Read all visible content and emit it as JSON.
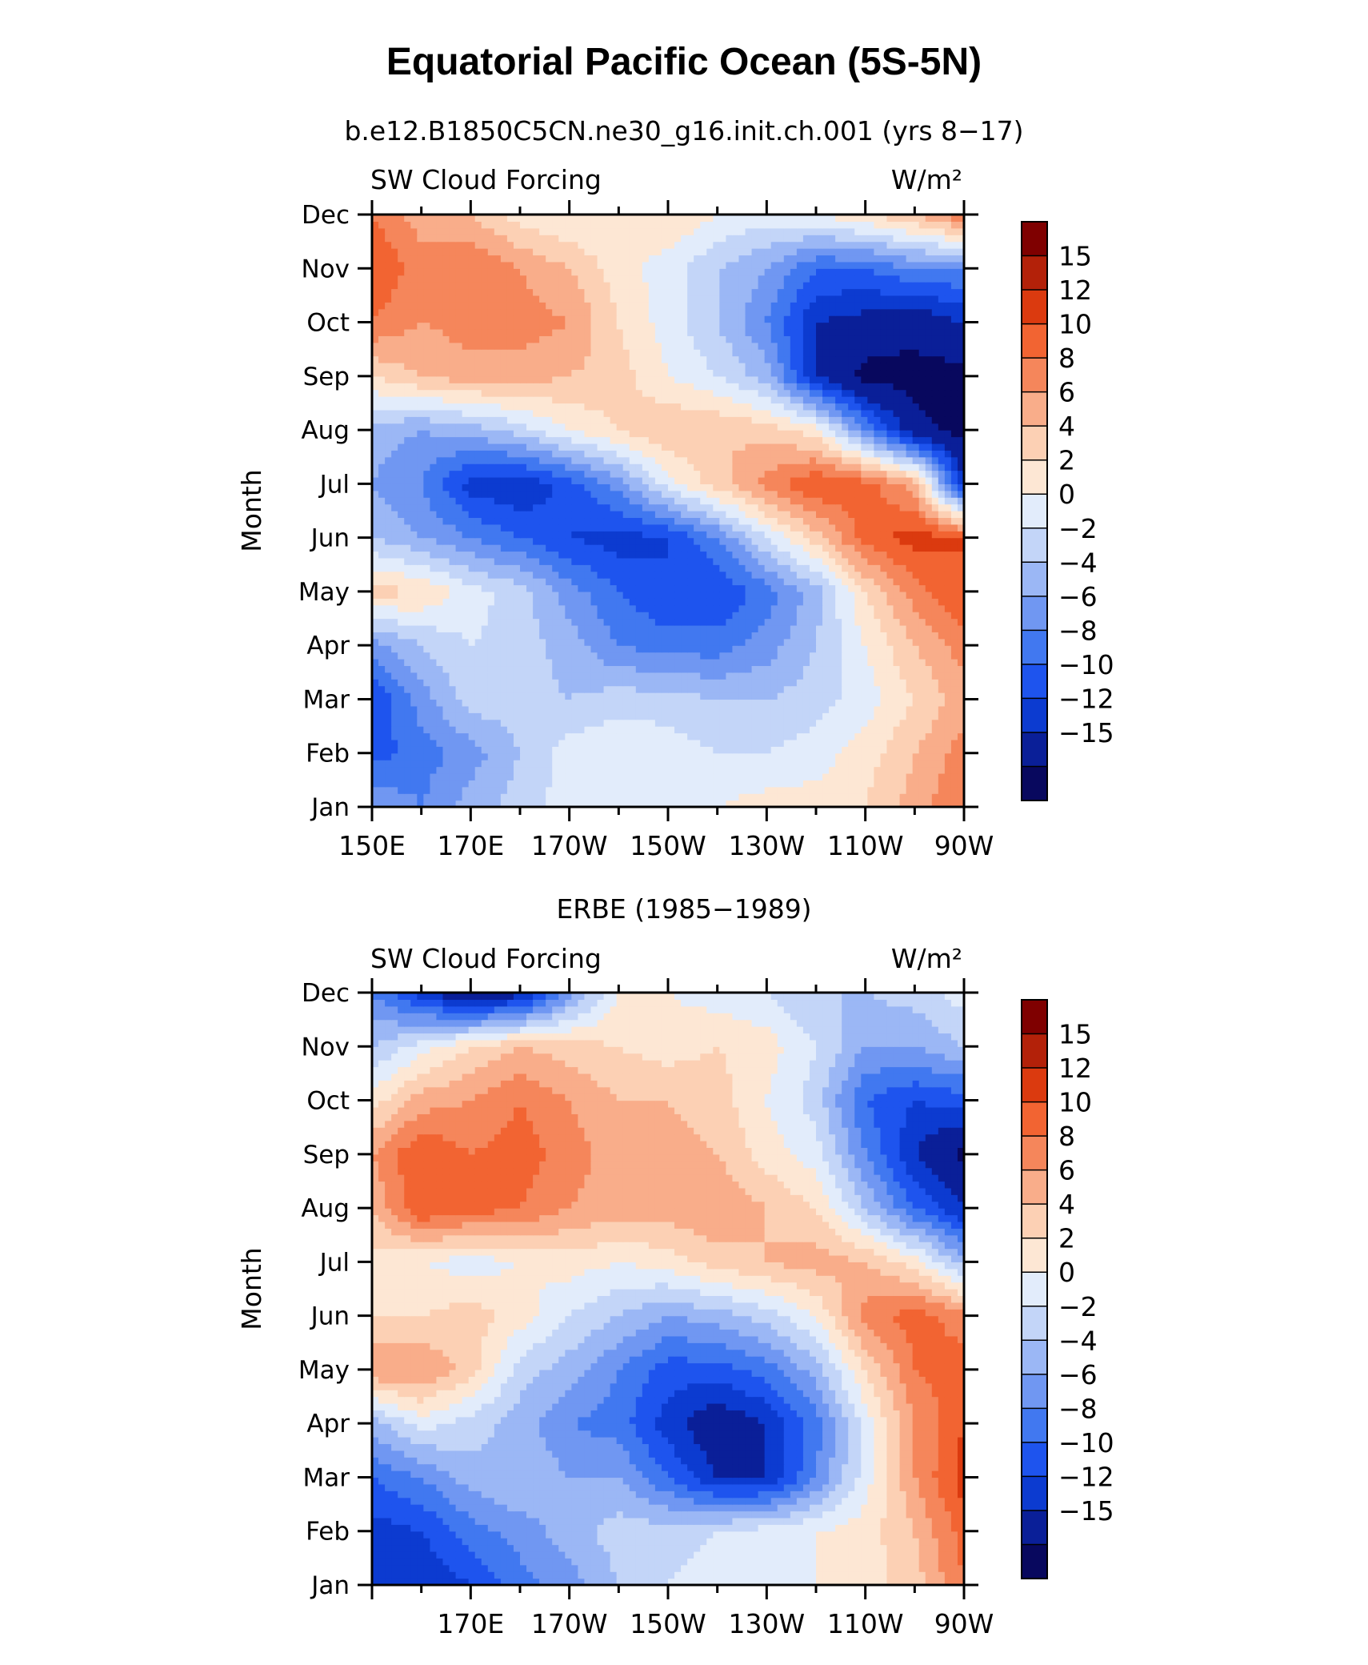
{
  "figure": {
    "title": "Equatorial Pacific Ocean (5S-5N)"
  },
  "palette": [
    "#08085e",
    "#0a1f98",
    "#0c3bd0",
    "#1e54ee",
    "#4178f0",
    "#7097f2",
    "#9bb7f5",
    "#c3d5f8",
    "#e2ecfb",
    "#fde7d4",
    "#fcd0b4",
    "#f9ad8a",
    "#f5865b",
    "#f26432",
    "#db3a0f",
    "#b32109",
    "#7f0000"
  ],
  "chart_data": [
    {
      "type": "heatmap",
      "title": "b.e12.B1850C5CN.ne30_g16.init.ch.001 (yrs 8−17)",
      "left_label": "SW Cloud Forcing",
      "right_label": "W/m²",
      "ylabel": "Month",
      "xlabel": "",
      "x_ticks": [
        "150E",
        "170E",
        "170W",
        "150W",
        "130W",
        "110W",
        "90W"
      ],
      "x_range": [
        150,
        270
      ],
      "y_ticks": [
        "Jan",
        "Feb",
        "Mar",
        "Apr",
        "May",
        "Jun",
        "Jul",
        "Aug",
        "Sep",
        "Oct",
        "Nov",
        "Dec"
      ],
      "colorbar_labels": [
        "15",
        "12",
        "10",
        "8",
        "6",
        "4",
        "2",
        "0",
        "−2",
        "−4",
        "−6",
        "−8",
        "−10",
        "−12",
        "−15"
      ],
      "colorbar_levels": [
        -15,
        -12,
        -10,
        -8,
        -6,
        -4,
        -2,
        0,
        2,
        4,
        6,
        8,
        10,
        12,
        15
      ],
      "x": [
        150,
        160,
        170,
        180,
        190,
        200,
        210,
        220,
        230,
        240,
        250,
        260,
        270
      ],
      "values": [
        [
          -4,
          -6,
          -3,
          -1,
          1,
          2,
          2,
          2,
          3,
          3,
          4,
          7,
          10
        ],
        [
          -9,
          -7,
          -5,
          -2,
          1,
          2,
          1,
          0,
          0,
          1,
          3,
          6,
          9
        ],
        [
          -10,
          -5,
          -1,
          -1,
          -2,
          -1,
          -1,
          -2,
          -2,
          -1,
          1,
          4,
          7
        ],
        [
          -5,
          -2,
          0,
          -1,
          -3,
          -6,
          -7,
          -7,
          -5,
          -2,
          2,
          6,
          9
        ],
        [
          5,
          4,
          1,
          -1,
          -5,
          -8,
          -10,
          -10,
          -7,
          -3,
          4,
          9,
          12
        ],
        [
          -2,
          -4,
          -6,
          -8,
          -10,
          -11,
          -10,
          -6,
          0,
          5,
          11,
          13,
          12
        ],
        [
          -4,
          -6,
          -11,
          -12,
          -9,
          -5,
          1,
          5,
          9,
          12,
          11,
          7,
          -12
        ],
        [
          -3,
          -4,
          -3,
          -1,
          2,
          4,
          6,
          6,
          5,
          3,
          -6,
          -14,
          -16
        ],
        [
          4,
          6,
          7,
          7,
          6,
          5,
          2,
          0,
          -3,
          -12,
          -16,
          -16,
          -16
        ],
        [
          10,
          8,
          9,
          9,
          8,
          4,
          1,
          -2,
          -6,
          -12,
          -13,
          -14,
          -12
        ],
        [
          12,
          9,
          10,
          8,
          6,
          3,
          1,
          -2,
          -4,
          -8,
          -8,
          -6,
          -6
        ],
        [
          10,
          7,
          6,
          3,
          2,
          2,
          4,
          2,
          1,
          2,
          4,
          6,
          10
        ]
      ]
    },
    {
      "type": "heatmap",
      "title": "ERBE (1985−1989)",
      "left_label": "SW Cloud Forcing",
      "right_label": "W/m²",
      "ylabel": "Month",
      "xlabel": "",
      "x_ticks": [
        "170E",
        "170W",
        "150W",
        "130W",
        "110W",
        "90W"
      ],
      "x_range": [
        150,
        270
      ],
      "y_ticks": [
        "Jan",
        "Feb",
        "Mar",
        "Apr",
        "May",
        "Jun",
        "Jul",
        "Aug",
        "Sep",
        "Oct",
        "Nov",
        "Dec"
      ],
      "colorbar_labels": [
        "15",
        "12",
        "10",
        "8",
        "6",
        "4",
        "2",
        "0",
        "−2",
        "−4",
        "−6",
        "−8",
        "−10",
        "−12",
        "−15"
      ],
      "colorbar_levels": [
        -15,
        -12,
        -10,
        -8,
        -6,
        -4,
        -2,
        0,
        2,
        4,
        6,
        8,
        10,
        12,
        15
      ],
      "x": [
        150,
        160,
        170,
        180,
        190,
        200,
        210,
        220,
        230,
        240,
        250,
        260,
        270
      ],
      "values": [
        [
          -12,
          -12,
          -10,
          -7,
          -5,
          -2,
          0,
          1,
          2,
          2,
          3,
          5,
          10
        ],
        [
          -11,
          -10,
          -7,
          -5,
          -3,
          -1,
          -1,
          0,
          1,
          2,
          3,
          6,
          11
        ],
        [
          -8,
          -6,
          -3,
          -2,
          -4,
          -4,
          -8,
          -12,
          -12,
          -6,
          1,
          8,
          13
        ],
        [
          -3,
          1,
          -1,
          -3,
          -6,
          -7,
          -11,
          -14,
          -12,
          -7,
          1,
          8,
          12
        ],
        [
          8,
          8,
          5,
          -1,
          -3,
          -6,
          -9,
          -9,
          -7,
          -3,
          4,
          10,
          11
        ],
        [
          4,
          4,
          5,
          3,
          0,
          -2,
          -4,
          -3,
          -1,
          2,
          9,
          11,
          9
        ],
        [
          3,
          2,
          1,
          2,
          3,
          2,
          3,
          5,
          6,
          7,
          6,
          3,
          -3
        ],
        [
          6,
          12,
          11,
          10,
          8,
          7,
          7,
          8,
          6,
          4,
          -2,
          -8,
          -12
        ],
        [
          8,
          12,
          10,
          11,
          9,
          7,
          7,
          6,
          3,
          1,
          -6,
          -12,
          -16
        ],
        [
          3,
          7,
          8,
          10,
          8,
          6,
          6,
          5,
          2,
          -1,
          -8,
          -10,
          -9
        ],
        [
          -2,
          1,
          4,
          6,
          5,
          4,
          3,
          4,
          3,
          0,
          -4,
          -4,
          -2
        ],
        [
          -6,
          -11,
          -15,
          -13,
          -5,
          2,
          2,
          1,
          0,
          -2,
          -2,
          -1,
          1
        ]
      ]
    }
  ]
}
